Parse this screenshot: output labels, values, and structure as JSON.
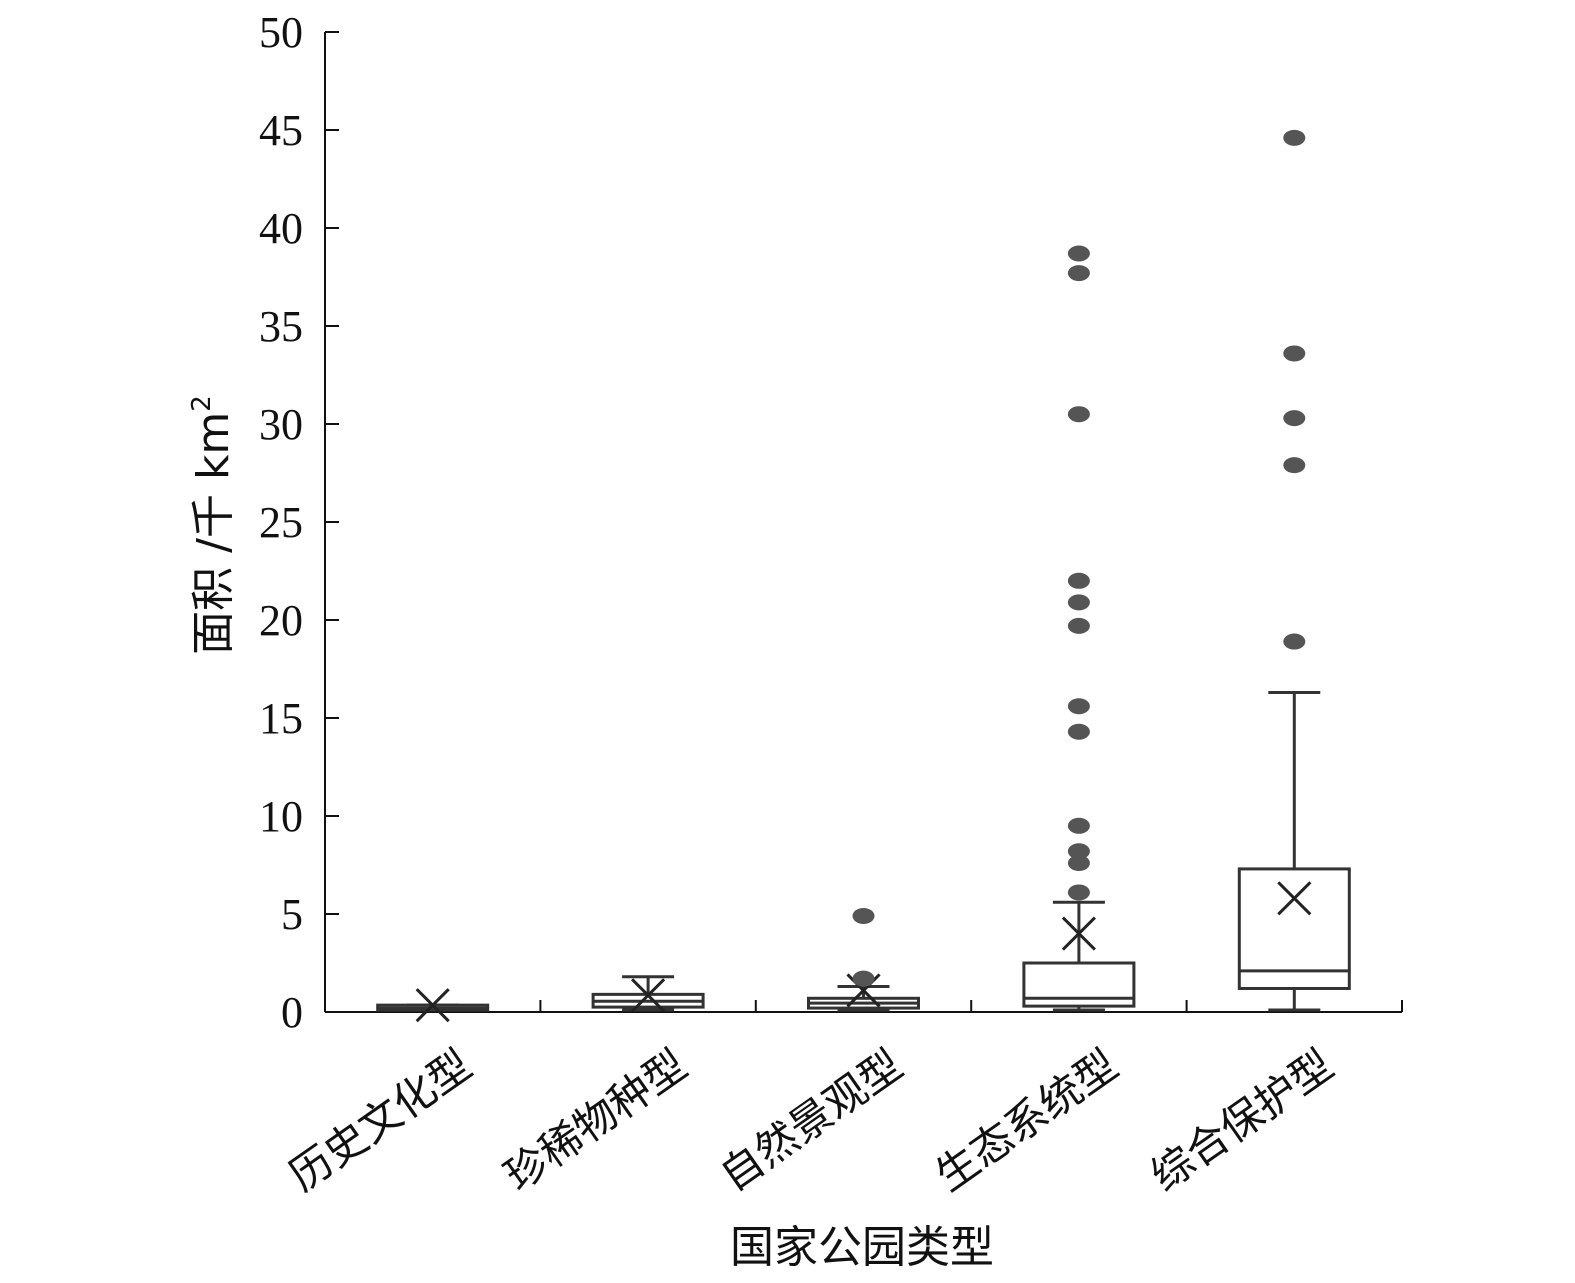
{
  "chart_data": {
    "type": "box",
    "xlabel": "国家公园类型",
    "ylabel_text": "面积 /千 km",
    "ylabel_superscript": "2",
    "ylim": [
      0,
      50
    ],
    "yticks": [
      0,
      5,
      10,
      15,
      20,
      25,
      30,
      35,
      40,
      45,
      50
    ],
    "categories": [
      "历史文化型",
      "珍稀物种型",
      "自然景观型",
      "生态系统型",
      "综合保护型"
    ],
    "boxes": [
      {
        "category": "历史文化型",
        "whisker_low": 0.1,
        "q1": 0.1,
        "median": 0.2,
        "q3": 0.35,
        "whisker_high": 0.35,
        "mean": 0.35,
        "outliers": []
      },
      {
        "category": "珍稀物种型",
        "whisker_low": 0.1,
        "q1": 0.25,
        "median": 0.55,
        "q3": 0.9,
        "whisker_high": 1.8,
        "mean": 0.85,
        "outliers": []
      },
      {
        "category": "自然景观型",
        "whisker_low": 0.1,
        "q1": 0.2,
        "median": 0.45,
        "q3": 0.7,
        "whisker_high": 1.3,
        "mean": 1.1,
        "outliers": [
          1.7,
          4.9
        ]
      },
      {
        "category": "生态系统型",
        "whisker_low": 0.1,
        "q1": 0.3,
        "median": 0.7,
        "q3": 2.5,
        "whisker_high": 5.6,
        "mean": 4.0,
        "outliers": [
          6.1,
          7.6,
          8.2,
          9.5,
          14.3,
          15.6,
          19.7,
          20.9,
          22.0,
          30.5,
          37.7,
          38.7
        ]
      },
      {
        "category": "综合保护型",
        "whisker_low": 0.1,
        "q1": 1.2,
        "median": 2.1,
        "q3": 7.3,
        "whisker_high": 16.3,
        "mean": 5.8,
        "outliers": [
          18.9,
          27.9,
          30.3,
          33.6,
          44.6
        ]
      }
    ],
    "colors": {
      "axis": "#111111",
      "box": "#333333",
      "outlier": "#555555",
      "background": "#ffffff"
    }
  }
}
